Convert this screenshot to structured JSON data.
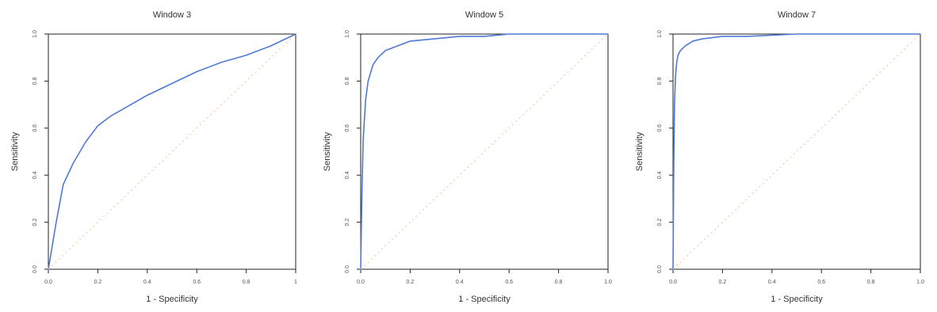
{
  "chart_data": [
    {
      "type": "line",
      "title": "Window 3",
      "xlabel": "1 - Specificity",
      "ylabel": "Sensitivity",
      "xlim": [
        0,
        1
      ],
      "ylim": [
        0,
        1
      ],
      "x_ticks": [
        0,
        0.2,
        0.4,
        0.6,
        0.8,
        1
      ],
      "x_tick_labels": [
        "0.0",
        "0.2",
        "0.4",
        "0.6",
        "0.8",
        "1"
      ],
      "y_ticks": [
        0,
        0.2,
        0.4,
        0.6,
        0.8,
        1
      ],
      "y_tick_labels": [
        "0.0",
        "0.2",
        "0.4",
        "0.6",
        "0.8",
        "1.0"
      ],
      "grid": false,
      "colors": {
        "curve": "#4f79d6",
        "reference": "#f6c9a2"
      },
      "series": [
        {
          "kind": "roc",
          "x": [
            0,
            0.03,
            0.06,
            0.1,
            0.15,
            0.2,
            0.25,
            0.3,
            0.4,
            0.5,
            0.6,
            0.7,
            0.8,
            0.9,
            1
          ],
          "y": [
            0,
            0.19,
            0.36,
            0.45,
            0.54,
            0.61,
            0.65,
            0.68,
            0.74,
            0.79,
            0.84,
            0.88,
            0.91,
            0.95,
            1
          ]
        },
        {
          "kind": "reference",
          "x": [
            0,
            1
          ],
          "y": [
            0,
            1
          ]
        }
      ]
    },
    {
      "type": "line",
      "title": "Window 5",
      "xlabel": "1 - Specificity",
      "ylabel": "Sensitivity",
      "xlim": [
        0,
        1
      ],
      "ylim": [
        0,
        1
      ],
      "x_ticks": [
        0,
        0.2,
        0.4,
        0.6,
        0.8,
        1
      ],
      "x_tick_labels": [
        "0.0",
        "0.2",
        "0.4",
        "0.6",
        "0.8",
        "1.0"
      ],
      "y_ticks": [
        0,
        0.2,
        0.4,
        0.6,
        0.8,
        1
      ],
      "y_tick_labels": [
        "0.0",
        "0.2",
        "0.4",
        "0.6",
        "0.8",
        "1.0"
      ],
      "grid": false,
      "colors": {
        "curve": "#4f79d6",
        "reference": "#f6c9a2"
      },
      "series": [
        {
          "kind": "roc",
          "x": [
            0,
            0.005,
            0.01,
            0.02,
            0.03,
            0.05,
            0.07,
            0.1,
            0.15,
            0.2,
            0.3,
            0.4,
            0.5,
            0.6,
            0.8,
            1
          ],
          "y": [
            0,
            0.32,
            0.55,
            0.72,
            0.8,
            0.87,
            0.9,
            0.93,
            0.95,
            0.97,
            0.98,
            0.99,
            0.99,
            1,
            1,
            1
          ]
        },
        {
          "kind": "reference",
          "x": [
            0,
            1
          ],
          "y": [
            0,
            1
          ]
        }
      ]
    },
    {
      "type": "line",
      "title": "Window 7",
      "xlabel": "1 - Specificity",
      "ylabel": "Sensitivity",
      "xlim": [
        0,
        1
      ],
      "ylim": [
        0,
        1
      ],
      "x_ticks": [
        0,
        0.2,
        0.4,
        0.6,
        0.8,
        1
      ],
      "x_tick_labels": [
        "0.0",
        "0.2",
        "0.4",
        "0.6",
        "0.8",
        "1.0"
      ],
      "y_ticks": [
        0,
        0.2,
        0.4,
        0.6,
        0.8,
        1
      ],
      "y_tick_labels": [
        "0.0",
        "0.2",
        "0.4",
        "0.6",
        "0.8",
        "1.0"
      ],
      "grid": false,
      "colors": {
        "curve": "#4f79d6",
        "reference": "#f6c9a2"
      },
      "series": [
        {
          "kind": "roc",
          "x": [
            0,
            0.003,
            0.006,
            0.01,
            0.015,
            0.02,
            0.03,
            0.05,
            0.08,
            0.12,
            0.2,
            0.3,
            0.5,
            0.7,
            1
          ],
          "y": [
            0,
            0.45,
            0.7,
            0.82,
            0.88,
            0.91,
            0.93,
            0.95,
            0.97,
            0.98,
            0.99,
            0.99,
            1,
            1,
            1
          ]
        },
        {
          "kind": "reference",
          "x": [
            0,
            1
          ],
          "y": [
            0,
            1
          ]
        }
      ]
    }
  ]
}
